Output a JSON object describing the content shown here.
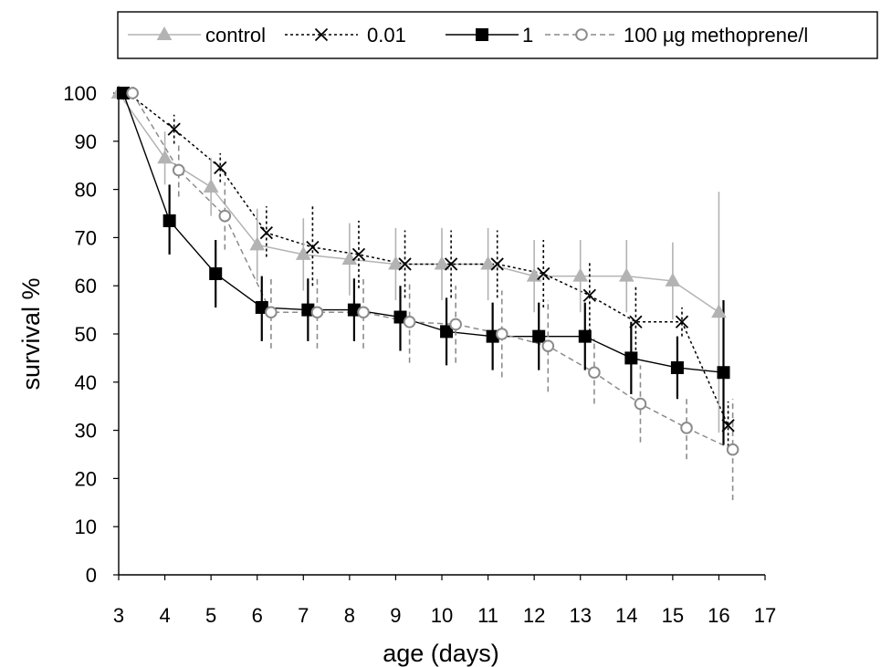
{
  "chart_data": {
    "type": "line",
    "title": "",
    "xlabel": "age (days)",
    "ylabel": "survival %",
    "xlim": [
      3,
      17
    ],
    "ylim": [
      0,
      100
    ],
    "xticks": [
      3,
      4,
      5,
      6,
      7,
      8,
      9,
      10,
      11,
      12,
      13,
      14,
      15,
      16,
      17
    ],
    "yticks": [
      0,
      10,
      20,
      30,
      40,
      50,
      60,
      70,
      80,
      90,
      100
    ],
    "grid": false,
    "legend_position": "top",
    "series": [
      {
        "name": "control",
        "color": "#b3b3b3",
        "marker": "triangle",
        "line_style": "solid",
        "points": [
          {
            "x": 3.0,
            "y": 100,
            "err": [
              100,
              100
            ]
          },
          {
            "x": 4.0,
            "y": 86.5,
            "err": [
              81,
              92
            ]
          },
          {
            "x": 5.0,
            "y": 80.5,
            "err": [
              74.5,
              86.5
            ]
          },
          {
            "x": 6.0,
            "y": 68.5,
            "err": [
              61,
              76
            ]
          },
          {
            "x": 7.0,
            "y": 66.5,
            "err": [
              59,
              74
            ]
          },
          {
            "x": 8.0,
            "y": 65.5,
            "err": [
              58,
              73
            ]
          },
          {
            "x": 9.0,
            "y": 64.5,
            "err": [
              57,
              72
            ]
          },
          {
            "x": 10.0,
            "y": 64.5,
            "err": [
              57,
              72
            ]
          },
          {
            "x": 11.0,
            "y": 64.5,
            "err": [
              57,
              72
            ]
          },
          {
            "x": 12.0,
            "y": 62,
            "err": [
              54.5,
              69.5
            ]
          },
          {
            "x": 13.0,
            "y": 62,
            "err": [
              54.5,
              69.5
            ]
          },
          {
            "x": 14.0,
            "y": 62,
            "err": [
              54.5,
              69.5
            ]
          },
          {
            "x": 15.0,
            "y": 61,
            "err": [
              53,
              69
            ]
          },
          {
            "x": 16.0,
            "y": 54.5,
            "err": [
              29.5,
              79.5
            ]
          }
        ]
      },
      {
        "name": "0.01",
        "color": "#000000",
        "marker": "x",
        "line_style": "dotted",
        "points": [
          {
            "x": 3.2,
            "y": 100,
            "err": [
              100,
              100
            ]
          },
          {
            "x": 4.2,
            "y": 92.5,
            "err": [
              89.5,
              95.5
            ]
          },
          {
            "x": 5.2,
            "y": 84.5,
            "err": [
              81.5,
              87.5
            ]
          },
          {
            "x": 6.2,
            "y": 71,
            "err": [
              66,
              76.5
            ]
          },
          {
            "x": 7.2,
            "y": 68,
            "err": [
              60,
              76.5
            ]
          },
          {
            "x": 8.2,
            "y": 66.5,
            "err": [
              59.5,
              73.5
            ]
          },
          {
            "x": 9.2,
            "y": 64.5,
            "err": [
              57.5,
              71.5
            ]
          },
          {
            "x": 10.2,
            "y": 64.5,
            "err": [
              57.5,
              71.5
            ]
          },
          {
            "x": 11.2,
            "y": 64.5,
            "err": [
              57.5,
              71.5
            ]
          },
          {
            "x": 12.2,
            "y": 62.5,
            "err": [
              55.5,
              69.5
            ]
          },
          {
            "x": 13.2,
            "y": 58,
            "err": [
              50.5,
              65
            ]
          },
          {
            "x": 14.2,
            "y": 52.5,
            "err": [
              45.5,
              60
            ]
          },
          {
            "x": 15.2,
            "y": 52.5,
            "err": [
              49.5,
              55.5
            ]
          },
          {
            "x": 16.2,
            "y": 31,
            "err": [
              25.5,
              36
            ]
          }
        ]
      },
      {
        "name": "1",
        "color": "#000000",
        "marker": "square",
        "line_style": "solid",
        "points": [
          {
            "x": 3.1,
            "y": 100,
            "err": [
              100,
              100
            ]
          },
          {
            "x": 4.1,
            "y": 73.5,
            "err": [
              66.5,
              81
            ]
          },
          {
            "x": 5.1,
            "y": 62.5,
            "err": [
              55.5,
              69.5
            ]
          },
          {
            "x": 6.1,
            "y": 55.5,
            "err": [
              48.5,
              62
            ]
          },
          {
            "x": 7.1,
            "y": 55,
            "err": [
              48.5,
              61.5
            ]
          },
          {
            "x": 8.1,
            "y": 55,
            "err": [
              48.5,
              61.5
            ]
          },
          {
            "x": 9.1,
            "y": 53.5,
            "err": [
              46.5,
              60
            ]
          },
          {
            "x": 10.1,
            "y": 50.5,
            "err": [
              43.5,
              57.5
            ]
          },
          {
            "x": 11.1,
            "y": 49.5,
            "err": [
              42.5,
              56.5
            ]
          },
          {
            "x": 12.1,
            "y": 49.5,
            "err": [
              42.5,
              56.5
            ]
          },
          {
            "x": 13.1,
            "y": 49.5,
            "err": [
              42.5,
              56.5
            ]
          },
          {
            "x": 14.1,
            "y": 45,
            "err": [
              37.5,
              52.5
            ]
          },
          {
            "x": 15.1,
            "y": 43,
            "err": [
              36.5,
              49.5
            ]
          },
          {
            "x": 16.1,
            "y": 42,
            "err": [
              27,
              57
            ]
          }
        ]
      },
      {
        "name": "100 µg methoprene/l",
        "color": "#8c8c8c",
        "marker": "circle",
        "line_style": "dashed",
        "points": [
          {
            "x": 3.3,
            "y": 100,
            "err": [
              100,
              100
            ]
          },
          {
            "x": 4.3,
            "y": 84,
            "err": [
              78.5,
              89.5
            ]
          },
          {
            "x": 5.3,
            "y": 74.5,
            "err": [
              67.5,
              81.5
            ]
          },
          {
            "x": 6.3,
            "y": 54.5,
            "err": [
              47,
              62
            ]
          },
          {
            "x": 7.3,
            "y": 54.5,
            "err": [
              47,
              62
            ]
          },
          {
            "x": 8.3,
            "y": 54.5,
            "err": [
              47,
              62
            ]
          },
          {
            "x": 9.3,
            "y": 52.5,
            "err": [
              44,
              60.5
            ]
          },
          {
            "x": 10.3,
            "y": 52,
            "err": [
              44,
              60
            ]
          },
          {
            "x": 11.3,
            "y": 50,
            "err": [
              41,
              59
            ]
          },
          {
            "x": 12.3,
            "y": 47.5,
            "err": [
              38,
              57
            ]
          },
          {
            "x": 13.3,
            "y": 42,
            "err": [
              35.5,
              49
            ]
          },
          {
            "x": 14.3,
            "y": 35.5,
            "err": [
              27.5,
              43.5
            ]
          },
          {
            "x": 15.3,
            "y": 30.5,
            "err": [
              24,
              37
            ]
          },
          {
            "x": 16.3,
            "y": 26,
            "err": [
              15.5,
              36.5
            ]
          }
        ]
      }
    ]
  }
}
